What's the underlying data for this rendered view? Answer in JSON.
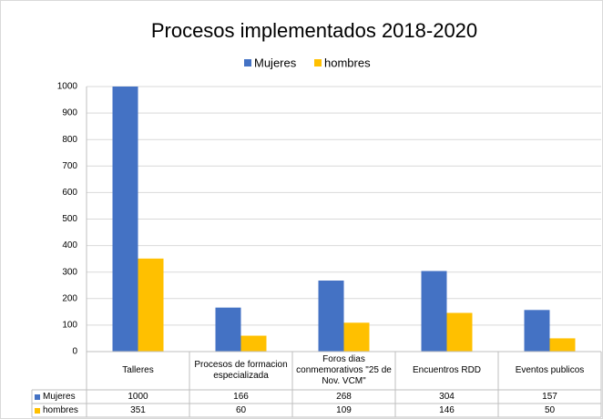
{
  "chart_data": {
    "type": "bar",
    "title": "Procesos implementados  2018-2020",
    "categories": [
      "Talleres",
      "Procesos de formacion especializada",
      "Foros dias conmemorativos \"25 de Nov. VCM\"",
      "Encuentros RDD",
      "Eventos publicos"
    ],
    "series": [
      {
        "name": "Mujeres",
        "color": "#4472c4",
        "values": [
          1000,
          166,
          268,
          304,
          157
        ]
      },
      {
        "name": "hombres",
        "color": "#ffc000",
        "values": [
          351,
          60,
          109,
          146,
          50
        ]
      }
    ],
    "ylim": [
      0,
      1000
    ],
    "yticks": [
      0,
      100,
      200,
      300,
      400,
      500,
      600,
      700,
      800,
      900,
      1000
    ],
    "grid": true,
    "legend": "top",
    "data_table": true
  }
}
